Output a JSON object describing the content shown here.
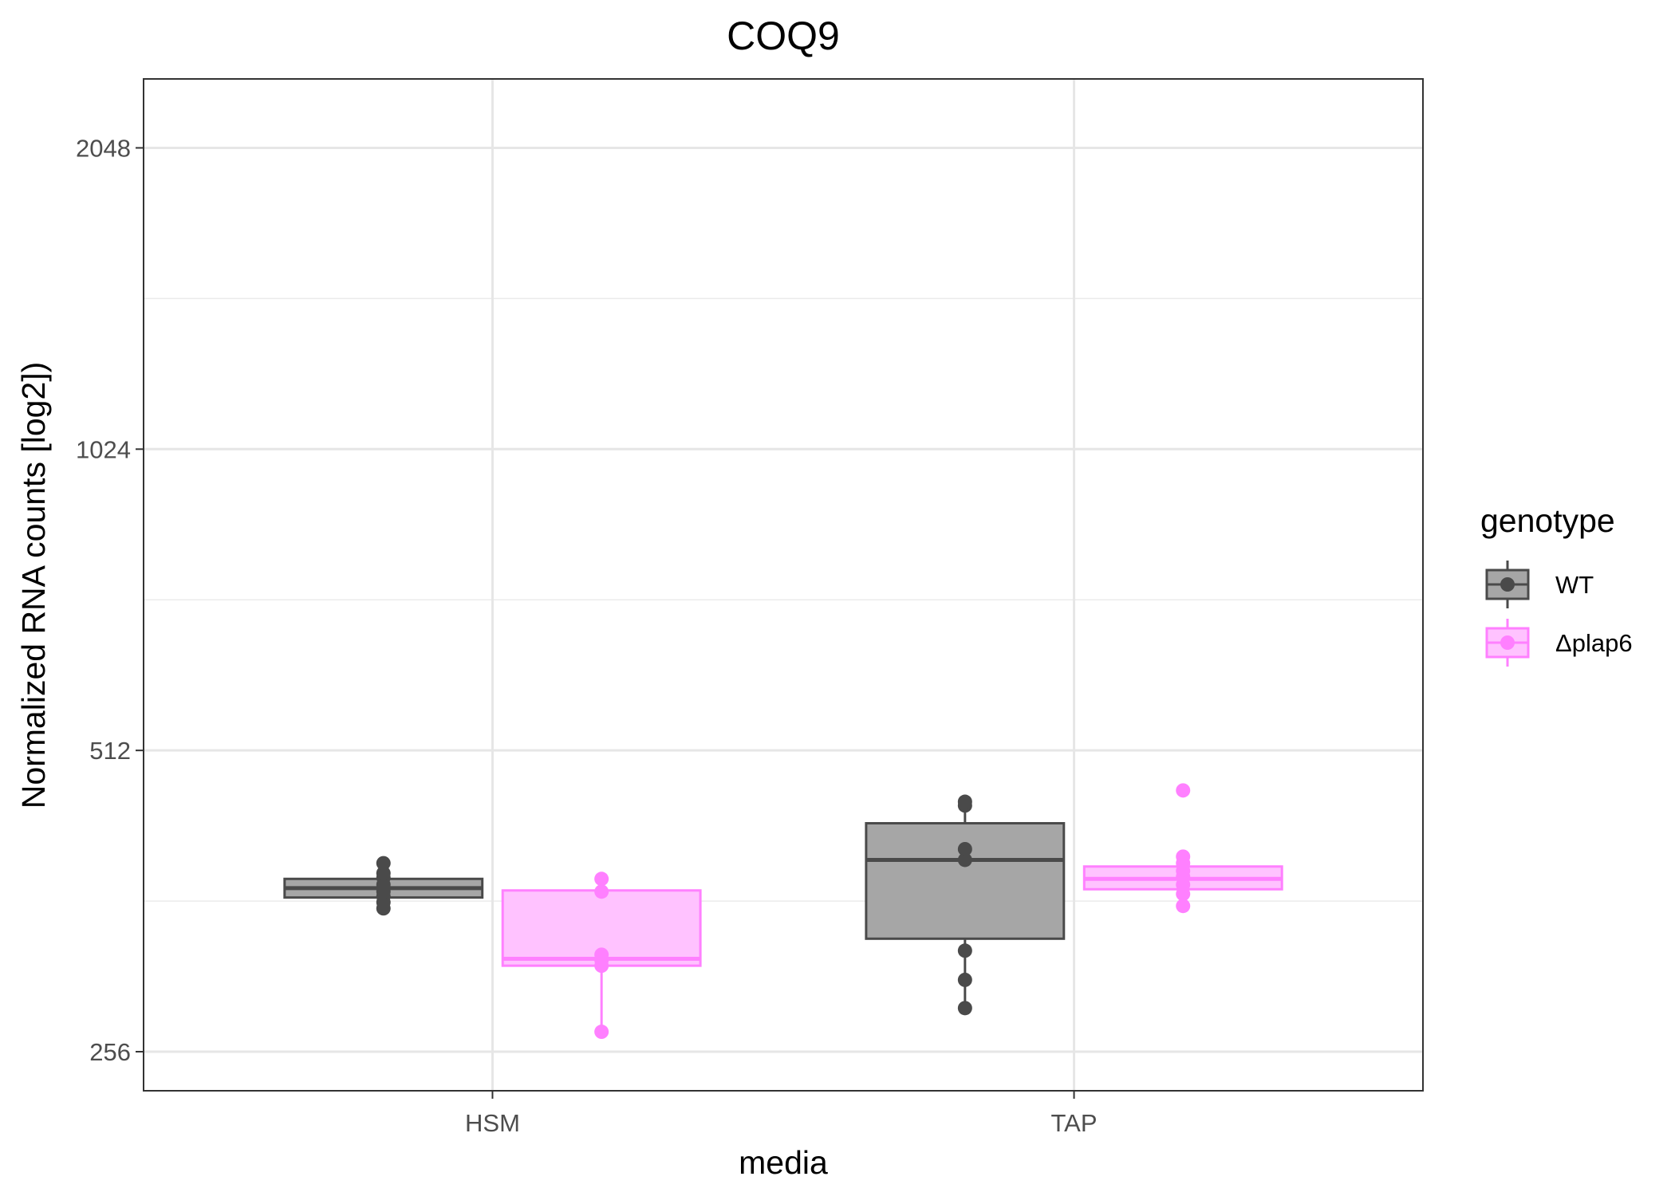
{
  "chart_data": {
    "type": "boxplot",
    "title": "COQ9",
    "xlabel": "media",
    "ylabel": "Normalized RNA counts [log2])",
    "y_scale": "log2",
    "ylim": [
      234,
      2400
    ],
    "y_ticks": [
      256,
      512,
      1024,
      2048
    ],
    "y_tick_labels": [
      "256",
      "512",
      "1024",
      "2048"
    ],
    "categories": [
      "HSM",
      "TAP"
    ],
    "legend": {
      "title": "genotype",
      "position": "right",
      "entries": [
        {
          "label": "WT",
          "color": "#4a4a4a",
          "fill": "#a6a6a6"
        },
        {
          "label": "Δplap6",
          "color": "#ff80ff",
          "fill": "#ffc2ff"
        }
      ]
    },
    "series": [
      {
        "name": "WT",
        "boxes": [
          {
            "category": "HSM",
            "q1": 365,
            "median": 373,
            "q3": 381,
            "whisker_low": 361,
            "whisker_high": 392,
            "points": [
              356,
              361,
              366,
              370,
              376,
              382,
              386,
              395
            ]
          },
          {
            "category": "TAP",
            "q1": 332,
            "median": 398,
            "q3": 433,
            "whisker_low": 283,
            "whisker_high": 453,
            "points": [
              283,
              302,
              323,
              398,
              408,
              451,
              455
            ]
          }
        ]
      },
      {
        "name": "Δplap6",
        "boxes": [
          {
            "category": "HSM",
            "q1": 312,
            "median": 317,
            "q3": 371,
            "whisker_low": 268,
            "whisker_high": 377,
            "points": [
              268,
              312,
              316,
              320,
              370,
              381
            ]
          },
          {
            "category": "TAP",
            "q1": 372,
            "median": 381,
            "q3": 392,
            "whisker_low": 358,
            "whisker_high": 400,
            "points": [
              358,
              368,
              376,
              383,
              388,
              395,
              401,
              467
            ]
          }
        ]
      }
    ]
  }
}
